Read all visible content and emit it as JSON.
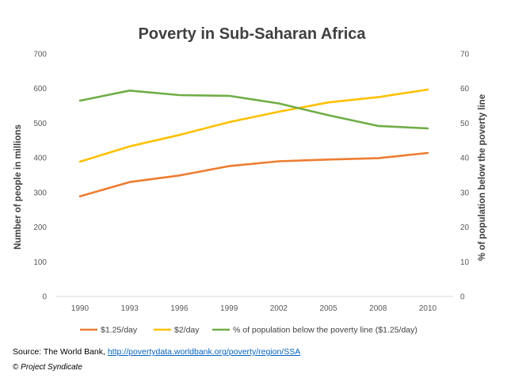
{
  "chart_data": {
    "type": "line",
    "title": "Poverty in Sub-Saharan Africa",
    "categories": [
      "1990",
      "1993",
      "1996",
      "1999",
      "2002",
      "2005",
      "2008",
      "2010"
    ],
    "y_left": {
      "label": "Number of people in millions",
      "range": [
        0,
        700
      ],
      "ticks": [
        "0",
        "100",
        "200",
        "300",
        "400",
        "500",
        "600",
        "700"
      ]
    },
    "y_right": {
      "label": "% of population below the poverty line",
      "range": [
        0,
        70
      ],
      "ticks": [
        "0",
        "10",
        "20",
        "30",
        "40",
        "50",
        "60",
        "70"
      ]
    },
    "series": [
      {
        "name": "$1.25/day",
        "axis": "left",
        "color": "#ed7d31",
        "values": [
          289,
          330,
          349,
          376,
          390,
          395,
          399,
          414
        ]
      },
      {
        "name": "$2/day",
        "axis": "left",
        "color": "#ffc000",
        "values": [
          389,
          433,
          466,
          503,
          533,
          560,
          575,
          597
        ]
      },
      {
        "name": "% of population below the poverty line ($1.25/day)",
        "axis": "right",
        "color": "#70ad47",
        "values": [
          56.5,
          59.4,
          58.1,
          57.9,
          55.7,
          52.3,
          49.2,
          48.5
        ]
      }
    ],
    "grid": false,
    "legend_position": "bottom"
  },
  "footer": {
    "source_prefix": "Source: The World Bank, ",
    "source_link": "http://povertydata.worldbank.org/poverty/region/SSA",
    "copyright_symbol": "©",
    "copyright_owner": "Project Syndicate"
  }
}
